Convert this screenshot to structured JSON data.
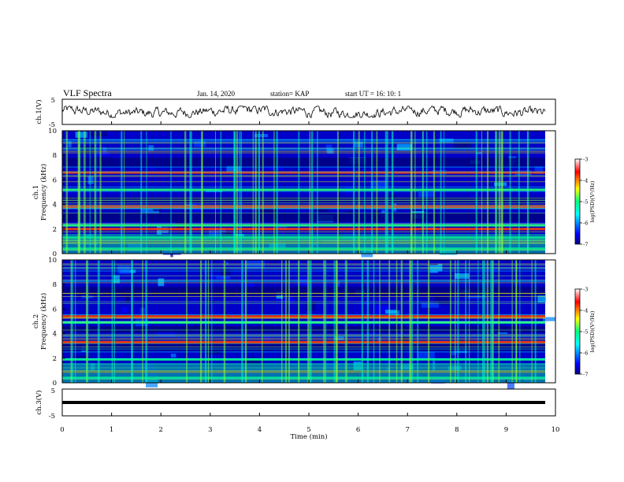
{
  "header": {
    "title": "VLF Spectra",
    "date": "Jan. 14, 2020",
    "station": "station= KAP",
    "start": "start  UT =   16: 10: 1"
  },
  "x_axis": {
    "label": "Time  (min)",
    "ticks": [
      "0",
      "1",
      "2",
      "3",
      "4",
      "5",
      "6",
      "7",
      "8",
      "9",
      "10"
    ]
  },
  "panels": {
    "ch1_wave": {
      "ylabel": "ch.1(V)",
      "ticks": [
        "5",
        "-5"
      ]
    },
    "ch1_spec": {
      "ylabel_top": "ch.1",
      "ylabel": "Frequency  (kHz)",
      "ticks": [
        "10",
        "8",
        "6",
        "4",
        "2",
        "0"
      ]
    },
    "ch2_spec": {
      "ylabel_top": "ch.2",
      "ylabel": "Frequency  (kHz)",
      "ticks": [
        "10",
        "8",
        "6",
        "4",
        "2",
        "0"
      ]
    },
    "ch3_wave": {
      "ylabel": "ch.3(V)",
      "ticks": [
        "5",
        "-5"
      ]
    }
  },
  "colorbar": {
    "label": "log(PSD)(V²/Hz)",
    "ticks": [
      "-3",
      "-4",
      "-5",
      "-6",
      "-7"
    ]
  },
  "chart_data": {
    "type": "heatmap",
    "title": "VLF Spectra",
    "xlabel": "Time  (min)",
    "xlim": [
      0,
      10
    ],
    "panels": [
      {
        "name": "ch.1(V)",
        "type": "line",
        "ylim": [
          -5,
          5
        ],
        "description_level_v": 0
      },
      {
        "name": "ch.1",
        "type": "heatmap",
        "ylabel": "Frequency  (kHz)",
        "ylim": [
          0,
          10
        ],
        "zlabel": "log(PSD)(V²/Hz)",
        "zlim": [
          -7,
          -3
        ],
        "strong_bands_khz": [
          0.4,
          0.9,
          1.3,
          2.0,
          2.3,
          3.8,
          5.2,
          6.6
        ]
      },
      {
        "name": "ch.2",
        "type": "heatmap",
        "ylabel": "Frequency  (kHz)",
        "ylim": [
          0,
          10
        ],
        "zlabel": "log(PSD)(V²/Hz)",
        "zlim": [
          -7,
          -3
        ],
        "strong_bands_khz": [
          0.4,
          0.9,
          1.9,
          3.3,
          4.9,
          5.4
        ]
      },
      {
        "name": "ch.3(V)",
        "type": "line",
        "ylim": [
          -5,
          5
        ],
        "constant_level_v": 0
      }
    ],
    "colors": {
      "low": "#00007f",
      "mid": "#00ff7f",
      "high": "#ff0000"
    }
  }
}
